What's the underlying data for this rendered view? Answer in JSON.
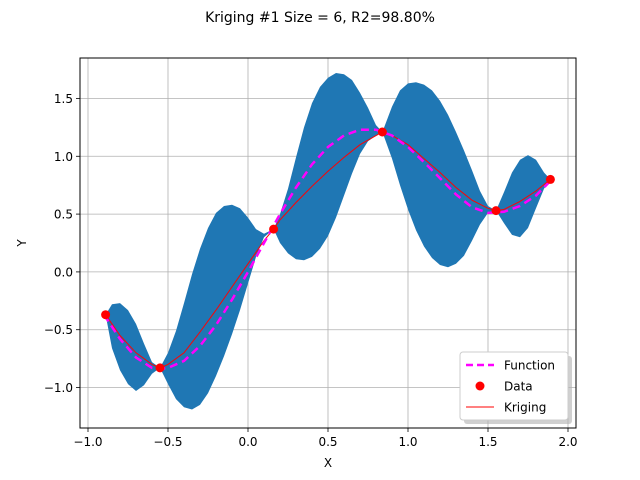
{
  "chart_data": {
    "type": "line",
    "title": "Kriging #1 Size = 6, R2=98.80%",
    "xlabel": "X",
    "ylabel": "Y",
    "xlim": [
      -1.05,
      2.05
    ],
    "ylim": [
      -1.35,
      1.85
    ],
    "xticks": [
      -1.0,
      -0.5,
      0.0,
      0.5,
      1.0,
      1.5,
      2.0
    ],
    "xtick_labels": [
      "−1.0",
      "−0.5",
      "0.0",
      "0.5",
      "1.0",
      "1.5",
      "2.0"
    ],
    "yticks": [
      -1.0,
      -0.5,
      0.0,
      0.5,
      1.0,
      1.5
    ],
    "ytick_labels": [
      "−1.0",
      "−0.5",
      "0.0",
      "0.5",
      "1.0",
      "1.5"
    ],
    "grid": true,
    "legend_position": "bottom-right",
    "colors": {
      "band": "#1f77b4",
      "function": "#ff00ff",
      "data": "#ff0000",
      "kriging": "#ff0000"
    },
    "series": [
      {
        "name": "Function",
        "style": "dashed",
        "x": [
          -0.9,
          -0.8,
          -0.7,
          -0.6,
          -0.55,
          -0.5,
          -0.4,
          -0.3,
          -0.2,
          -0.1,
          0.0,
          0.1,
          0.2,
          0.3,
          0.4,
          0.5,
          0.6,
          0.7,
          0.8,
          0.9,
          1.0,
          1.1,
          1.2,
          1.3,
          1.4,
          1.5,
          1.6,
          1.7,
          1.8,
          1.9
        ],
        "y": [
          -0.37,
          -0.58,
          -0.74,
          -0.83,
          -0.84,
          -0.83,
          -0.77,
          -0.64,
          -0.46,
          -0.24,
          0.0,
          0.25,
          0.5,
          0.73,
          0.93,
          1.08,
          1.18,
          1.23,
          1.23,
          1.18,
          1.08,
          0.95,
          0.81,
          0.67,
          0.56,
          0.51,
          0.52,
          0.57,
          0.66,
          0.8
        ]
      },
      {
        "name": "Data",
        "style": "points",
        "x": [
          -0.89,
          -0.55,
          0.16,
          0.84,
          1.55,
          1.89
        ],
        "y": [
          -0.37,
          -0.83,
          0.37,
          1.21,
          0.53,
          0.8
        ]
      },
      {
        "name": "Kriging",
        "style": "solid",
        "x": [
          -0.89,
          -0.8,
          -0.7,
          -0.6,
          -0.55,
          -0.5,
          -0.4,
          -0.3,
          -0.2,
          -0.1,
          0.0,
          0.1,
          0.16,
          0.2,
          0.3,
          0.4,
          0.5,
          0.6,
          0.7,
          0.84,
          0.9,
          1.0,
          1.1,
          1.2,
          1.3,
          1.4,
          1.5,
          1.55,
          1.6,
          1.7,
          1.8,
          1.89
        ],
        "y": [
          -0.37,
          -0.55,
          -0.7,
          -0.8,
          -0.83,
          -0.8,
          -0.7,
          -0.52,
          -0.33,
          -0.13,
          0.07,
          0.27,
          0.37,
          0.45,
          0.6,
          0.74,
          0.87,
          0.99,
          1.1,
          1.21,
          1.18,
          1.1,
          0.98,
          0.86,
          0.73,
          0.62,
          0.55,
          0.53,
          0.54,
          0.61,
          0.7,
          0.8
        ]
      }
    ],
    "confidence_band": {
      "x": [
        -0.89,
        -0.85,
        -0.8,
        -0.75,
        -0.7,
        -0.65,
        -0.6,
        -0.55,
        -0.5,
        -0.45,
        -0.4,
        -0.35,
        -0.3,
        -0.25,
        -0.2,
        -0.15,
        -0.1,
        -0.05,
        0.0,
        0.05,
        0.1,
        0.16,
        0.2,
        0.25,
        0.3,
        0.35,
        0.4,
        0.45,
        0.5,
        0.55,
        0.6,
        0.65,
        0.7,
        0.75,
        0.8,
        0.84,
        0.9,
        0.95,
        1.0,
        1.05,
        1.1,
        1.15,
        1.2,
        1.25,
        1.3,
        1.35,
        1.4,
        1.45,
        1.5,
        1.55,
        1.6,
        1.65,
        1.7,
        1.75,
        1.8,
        1.85,
        1.89
      ],
      "lower": [
        -0.37,
        -0.66,
        -0.85,
        -0.97,
        -1.03,
        -0.98,
        -0.88,
        -0.83,
        -0.97,
        -1.1,
        -1.17,
        -1.19,
        -1.15,
        -1.05,
        -0.9,
        -0.73,
        -0.54,
        -0.33,
        -0.1,
        0.13,
        0.3,
        0.37,
        0.25,
        0.16,
        0.11,
        0.1,
        0.13,
        0.2,
        0.31,
        0.47,
        0.66,
        0.85,
        1.02,
        1.13,
        1.18,
        1.21,
        0.98,
        0.75,
        0.54,
        0.36,
        0.22,
        0.12,
        0.06,
        0.04,
        0.07,
        0.14,
        0.27,
        0.41,
        0.51,
        0.53,
        0.42,
        0.32,
        0.3,
        0.38,
        0.55,
        0.72,
        0.8
      ],
      "upper": [
        -0.37,
        -0.28,
        -0.27,
        -0.33,
        -0.45,
        -0.62,
        -0.78,
        -0.83,
        -0.7,
        -0.51,
        -0.27,
        -0.02,
        0.2,
        0.38,
        0.51,
        0.57,
        0.58,
        0.55,
        0.47,
        0.37,
        0.33,
        0.37,
        0.5,
        0.72,
        0.99,
        1.25,
        1.46,
        1.6,
        1.68,
        1.72,
        1.71,
        1.66,
        1.55,
        1.42,
        1.27,
        1.21,
        1.43,
        1.57,
        1.63,
        1.64,
        1.62,
        1.57,
        1.48,
        1.36,
        1.21,
        1.05,
        0.88,
        0.7,
        0.57,
        0.53,
        0.69,
        0.86,
        0.97,
        1.01,
        0.97,
        0.86,
        0.8
      ]
    }
  }
}
